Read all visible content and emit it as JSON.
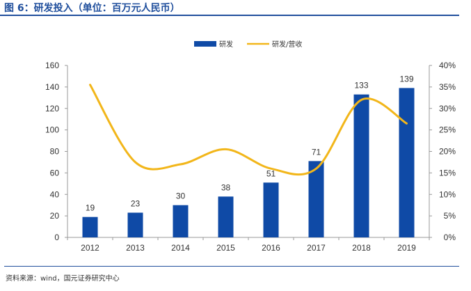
{
  "header": {
    "title": "图 6：研发投入（单位：百万元人民币）"
  },
  "footer": {
    "source": "资料来源：wind，国元证券研究中心"
  },
  "colors": {
    "bar": "#0f4aa6",
    "line": "#f2b61a",
    "rule": "#1f4e9c",
    "axis": "#999999",
    "text": "#333333"
  },
  "chart_data": {
    "type": "bar",
    "categories": [
      "2012",
      "2013",
      "2014",
      "2015",
      "2016",
      "2017",
      "2018",
      "2019"
    ],
    "series": [
      {
        "name": "研发",
        "type": "bar",
        "axis": "left",
        "values": [
          19,
          23,
          30,
          38,
          51,
          71,
          133,
          139
        ]
      },
      {
        "name": "研发/营收",
        "type": "line",
        "axis": "right",
        "values": [
          35.5,
          17.5,
          17.0,
          20.5,
          16.0,
          16.0,
          32.0,
          26.5
        ]
      }
    ],
    "data_labels": [
      "19",
      "23",
      "30",
      "38",
      "51",
      "71",
      "133",
      "139"
    ],
    "y_left": {
      "lim": [
        0,
        160
      ],
      "ticks": [
        0,
        20,
        40,
        60,
        80,
        100,
        120,
        140,
        160
      ]
    },
    "y_right": {
      "lim": [
        0,
        40
      ],
      "ticks": [
        "0%",
        "5%",
        "10%",
        "15%",
        "20%",
        "25%",
        "30%",
        "35%",
        "40%"
      ]
    },
    "legend": {
      "position": "top-center"
    },
    "grid": false
  }
}
